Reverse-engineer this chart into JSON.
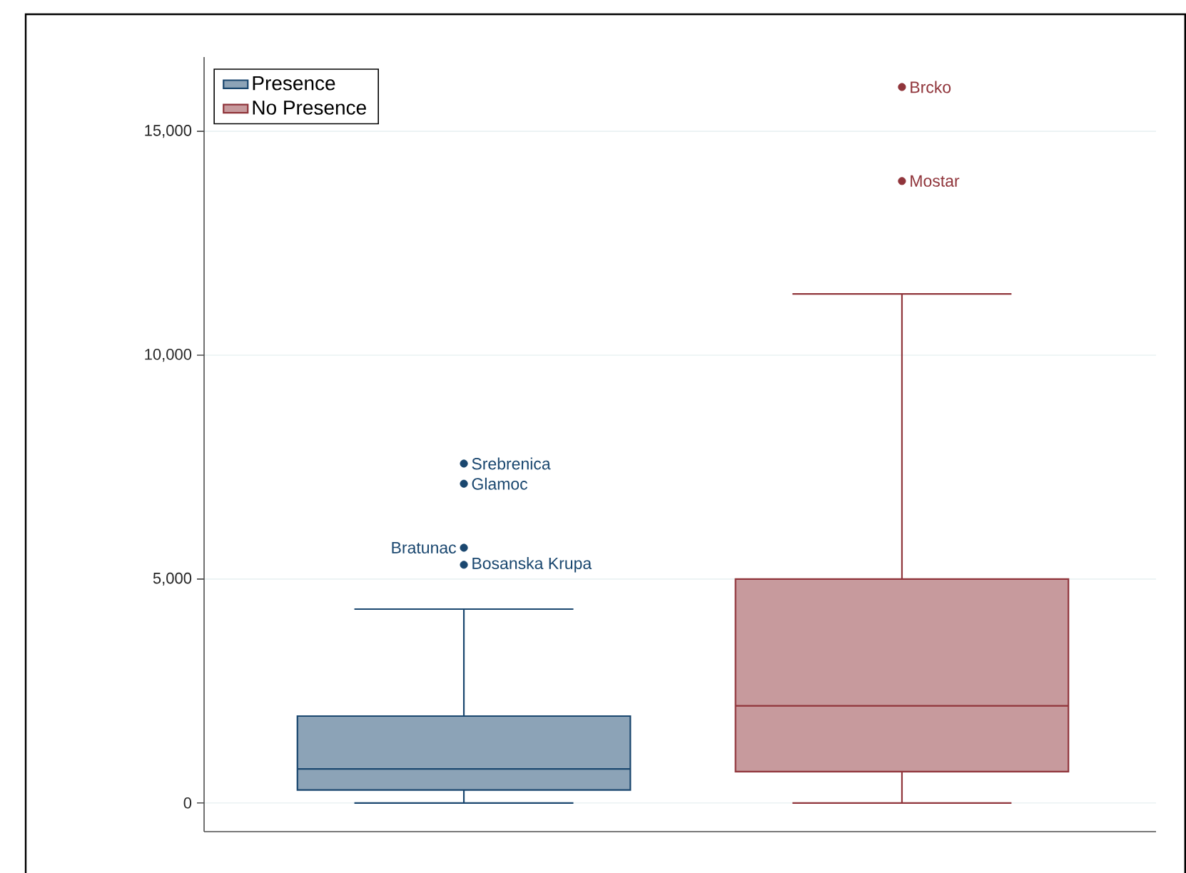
{
  "chart_data": {
    "type": "box",
    "categories": [
      null,
      null
    ],
    "series": [
      {
        "name": "Presence",
        "color": "#1a476f",
        "boxes": [
          {
            "low": 0,
            "q1": 290,
            "median": 760,
            "q3": 1940,
            "high": 4330,
            "outliers": [
              7580,
              7130,
              5700,
              5320
            ]
          },
          null
        ]
      },
      {
        "name": "No Presence",
        "color": "#90353b",
        "boxes": [
          null,
          {
            "low": 0,
            "q1": 700,
            "median": 2170,
            "q3": 5000,
            "high": 11370,
            "outliers": [
              15990,
              13890
            ]
          }
        ]
      }
    ],
    "annotations": [
      "Srebrenica",
      "Glamoc",
      "Bratunac",
      "Bosanska Krupa",
      "Brcko",
      "Mostar"
    ],
    "ylim": [
      -640,
      16660
    ],
    "yticks": [
      {
        "value": 0,
        "label": "0"
      },
      {
        "value": 5000,
        "label": "5,000"
      },
      {
        "value": 10000,
        "label": "10,000"
      },
      {
        "value": 15000,
        "label": "15,000"
      }
    ],
    "grid": "y",
    "legend": "top left"
  }
}
